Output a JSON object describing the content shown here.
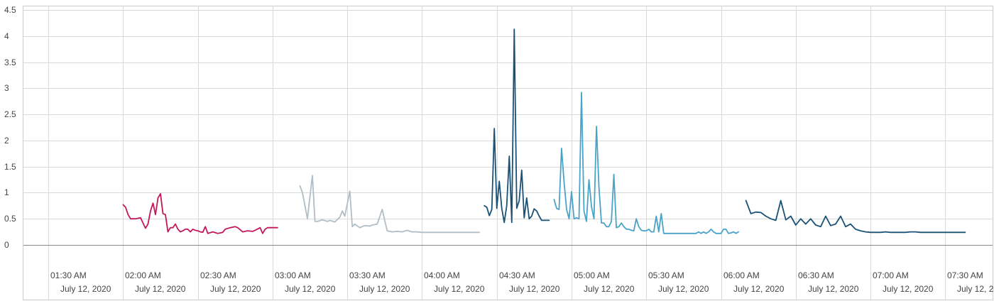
{
  "colors": {
    "grid": "#d9d9d9",
    "zero_line": "#888888",
    "frame": "#cccccc",
    "text": "#444444"
  },
  "chart_data": {
    "type": "line",
    "title": "",
    "xlabel": "",
    "ylabel": "",
    "ylim": [
      -0.5,
      5.0
    ],
    "yticks": [
      0,
      0.5,
      1,
      1.5,
      2,
      2.5,
      3,
      3.5,
      4,
      4.5
    ],
    "ytick_labels": [
      "0",
      "0.5",
      "1",
      "1.5",
      "2",
      "2.5",
      "3",
      "3.5",
      "4",
      "4.5"
    ],
    "xlim": [
      "01:20",
      "07:49"
    ],
    "xticks": [
      "01:30",
      "02:00",
      "02:30",
      "03:00",
      "03:30",
      "04:00",
      "04:30",
      "05:00",
      "05:30",
      "06:00",
      "06:30",
      "07:00",
      "07:30"
    ],
    "xtick_labels": [
      "01:30 AM",
      "02:00 AM",
      "02:30 AM",
      "03:00 AM",
      "03:30 AM",
      "04:00 AM",
      "04:30 AM",
      "05:00 AM",
      "05:30 AM",
      "06:00 AM",
      "06:30 AM",
      "07:00 AM",
      "07:30 AM"
    ],
    "xtick_dates": [
      "July 12, 2020",
      "July 12, 2020",
      "July 12, 2020",
      "July 12, 2020",
      "July 12, 2020",
      "July 12, 2020",
      "July 12, 2020",
      "July 12, 2020",
      "July 12, 2020",
      "July 12, 2020",
      "July 12, 2020",
      "July 12, 2020",
      "July 12, 2020"
    ],
    "grid": true,
    "legend": "none",
    "series": [
      {
        "color": "#c2185b",
        "x": [
          "02:00",
          "02:01",
          "02:02",
          "02:03",
          "02:05",
          "02:07",
          "02:09",
          "02:10",
          "02:11",
          "02:12",
          "02:13",
          "02:14",
          "02:15",
          "02:16",
          "02:17",
          "02:18",
          "02:19",
          "02:20",
          "02:21",
          "02:22",
          "02:23",
          "02:24",
          "02:25",
          "02:26",
          "02:27",
          "02:28",
          "02:29",
          "02:30",
          "02:31",
          "02:32",
          "02:33",
          "02:34",
          "02:36",
          "02:38",
          "02:39",
          "02:40",
          "02:41",
          "02:43",
          "02:45",
          "02:46",
          "02:48",
          "02:50",
          "02:52",
          "02:53",
          "02:55",
          "02:56",
          "02:57",
          "02:58",
          "03:00",
          "03:02"
        ],
        "y": [
          0.77,
          0.72,
          0.58,
          0.5,
          0.5,
          0.52,
          0.32,
          0.4,
          0.65,
          0.8,
          0.58,
          0.9,
          0.98,
          0.6,
          0.58,
          0.25,
          0.33,
          0.33,
          0.4,
          0.3,
          0.25,
          0.27,
          0.3,
          0.3,
          0.25,
          0.3,
          0.28,
          0.27,
          0.25,
          0.24,
          0.35,
          0.22,
          0.25,
          0.22,
          0.23,
          0.24,
          0.3,
          0.33,
          0.35,
          0.33,
          0.25,
          0.27,
          0.26,
          0.28,
          0.33,
          0.22,
          0.3,
          0.33,
          0.33,
          0.33
        ]
      },
      {
        "color": "#b0bec5",
        "x": [
          "03:11",
          "03:12",
          "03:14",
          "03:16",
          "03:17",
          "03:18",
          "03:20",
          "03:22",
          "03:23",
          "03:25",
          "03:27",
          "03:28",
          "03:29",
          "03:31",
          "03:32",
          "03:33",
          "03:35",
          "03:37",
          "03:39",
          "03:40",
          "03:42",
          "03:44",
          "03:46",
          "03:48",
          "03:50",
          "03:52",
          "03:54",
          "03:56",
          "03:58",
          "04:00",
          "04:05",
          "04:10",
          "04:15",
          "04:20",
          "04:23"
        ],
        "y": [
          1.13,
          1.0,
          0.5,
          1.33,
          0.45,
          0.45,
          0.48,
          0.45,
          0.47,
          0.44,
          0.53,
          0.65,
          0.55,
          1.03,
          0.35,
          0.4,
          0.33,
          0.37,
          0.36,
          0.38,
          0.4,
          0.68,
          0.27,
          0.25,
          0.26,
          0.25,
          0.28,
          0.25,
          0.25,
          0.24,
          0.24,
          0.24,
          0.24,
          0.24,
          0.24
        ]
      },
      {
        "color": "#1a5276",
        "x": [
          "04:25",
          "04:26",
          "04:27",
          "04:28",
          "04:29",
          "04:30",
          "04:31",
          "04:32",
          "04:33",
          "04:34",
          "04:35",
          "04:36",
          "04:37",
          "04:38",
          "04:39",
          "04:40",
          "04:41",
          "04:42",
          "04:43",
          "04:44",
          "04:45",
          "04:46",
          "04:47",
          "04:48",
          "04:49",
          "04:50",
          "04:51"
        ],
        "y": [
          0.75,
          0.72,
          0.56,
          0.68,
          2.23,
          0.7,
          1.22,
          0.7,
          0.43,
          0.75,
          1.7,
          0.43,
          4.13,
          0.7,
          0.85,
          1.43,
          0.52,
          0.9,
          0.5,
          0.55,
          0.69,
          0.65,
          0.55,
          0.47,
          0.47,
          0.47,
          0.47
        ]
      },
      {
        "color": "#4aa3c8",
        "x": [
          "04:53",
          "04:54",
          "04:55",
          "04:56",
          "04:57",
          "04:58",
          "04:59",
          "05:00",
          "05:01",
          "05:02",
          "05:03",
          "05:04",
          "05:05",
          "05:06",
          "05:07",
          "05:08",
          "05:09",
          "05:10",
          "05:11",
          "05:12",
          "05:13",
          "05:14",
          "05:15",
          "05:16",
          "05:17",
          "05:18",
          "05:19",
          "05:20",
          "05:21",
          "05:22",
          "05:23",
          "05:24",
          "05:25",
          "05:26",
          "05:27",
          "05:28",
          "05:29",
          "05:30",
          "05:31",
          "05:32",
          "05:33",
          "05:34",
          "05:35",
          "05:36",
          "05:37",
          "05:38",
          "05:39",
          "05:40",
          "05:41",
          "05:42",
          "05:43",
          "05:44",
          "05:45",
          "05:46",
          "05:47",
          "05:48",
          "05:49",
          "05:50",
          "05:51",
          "05:52",
          "05:53",
          "05:54",
          "05:55",
          "05:56",
          "05:57",
          "05:58",
          "05:59",
          "06:00",
          "06:01",
          "06:02",
          "06:03",
          "06:04",
          "06:05",
          "06:06",
          "06:07"
        ],
        "y": [
          0.87,
          0.7,
          0.68,
          1.85,
          1.2,
          0.68,
          0.5,
          1.02,
          0.5,
          0.52,
          0.5,
          2.92,
          0.65,
          0.45,
          1.25,
          0.73,
          0.5,
          2.27,
          1.1,
          0.42,
          0.42,
          0.35,
          0.35,
          0.45,
          1.35,
          0.33,
          0.35,
          0.42,
          0.35,
          0.3,
          0.3,
          0.28,
          0.27,
          0.5,
          0.35,
          0.28,
          0.27,
          0.27,
          0.3,
          0.25,
          0.25,
          0.55,
          0.25,
          0.6,
          0.22,
          0.22,
          0.22,
          0.22,
          0.22,
          0.22,
          0.22,
          0.22,
          0.22,
          0.22,
          0.22,
          0.22,
          0.22,
          0.22,
          0.25,
          0.22,
          0.25,
          0.22,
          0.25,
          0.3,
          0.25,
          0.22,
          0.22,
          0.22,
          0.3,
          0.3,
          0.22,
          0.23,
          0.25,
          0.22,
          0.25
        ]
      },
      {
        "color": "#1a5276",
        "x": [
          "06:10",
          "06:12",
          "06:14",
          "06:16",
          "06:18",
          "06:20",
          "06:22",
          "06:24",
          "06:26",
          "06:28",
          "06:30",
          "06:32",
          "06:34",
          "06:36",
          "06:38",
          "06:40",
          "06:42",
          "06:44",
          "06:46",
          "06:48",
          "06:50",
          "06:52",
          "06:54",
          "06:56",
          "06:58",
          "07:00",
          "07:02",
          "07:04",
          "07:06",
          "07:08",
          "07:10",
          "07:12",
          "07:14",
          "07:16",
          "07:18",
          "07:20",
          "07:22",
          "07:24",
          "07:26",
          "07:28",
          "07:30",
          "07:32",
          "07:34",
          "07:36",
          "07:38"
        ],
        "y": [
          0.85,
          0.6,
          0.63,
          0.62,
          0.55,
          0.5,
          0.47,
          0.85,
          0.48,
          0.55,
          0.38,
          0.5,
          0.4,
          0.5,
          0.38,
          0.35,
          0.55,
          0.37,
          0.4,
          0.55,
          0.35,
          0.4,
          0.3,
          0.27,
          0.25,
          0.24,
          0.24,
          0.24,
          0.25,
          0.24,
          0.24,
          0.24,
          0.24,
          0.25,
          0.25,
          0.24,
          0.24,
          0.24,
          0.24,
          0.24,
          0.24,
          0.24,
          0.24,
          0.24,
          0.24
        ]
      }
    ]
  }
}
